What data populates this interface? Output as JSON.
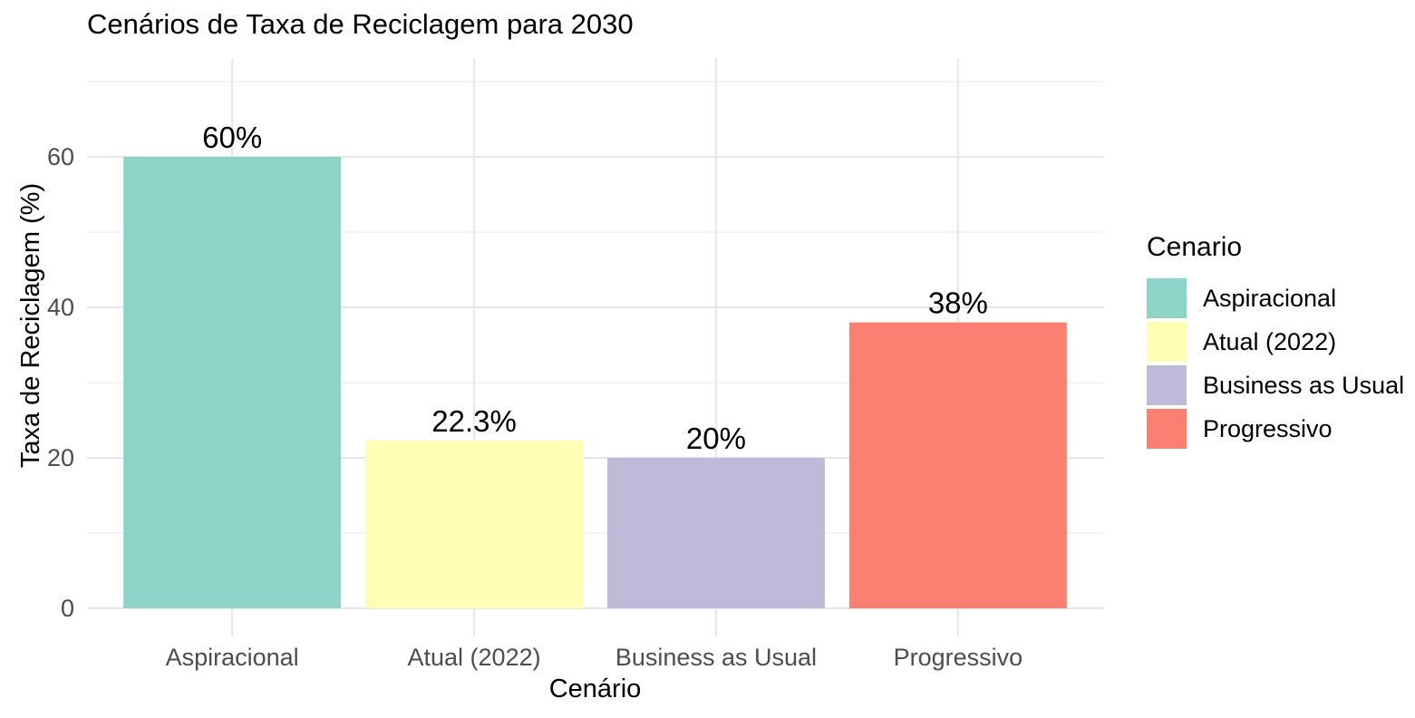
{
  "chart_data": {
    "type": "bar",
    "title": "Cenários de Taxa de Reciclagem para 2030",
    "xlabel": "Cenário",
    "ylabel": "Taxa de Reciclagem (%)",
    "categories": [
      "Aspiracional",
      "Atual (2022)",
      "Business as Usual",
      "Progressivo"
    ],
    "values": [
      60,
      22.3,
      20,
      38
    ],
    "bar_labels": [
      "60%",
      "22.3%",
      "20%",
      "38%"
    ],
    "bar_colors": [
      "#8DD3C7",
      "#FFFFB3",
      "#BEBADA",
      "#FB8072"
    ],
    "ylim": [
      0,
      73
    ],
    "yticks": [
      0,
      20,
      40,
      60
    ],
    "yticks_minor": [
      10,
      30,
      50,
      70
    ],
    "grid": true,
    "legend": {
      "title": "Cenario",
      "position": "right",
      "entries": [
        {
          "label": "Aspiracional",
          "color": "#8DD3C7"
        },
        {
          "label": "Atual (2022)",
          "color": "#FFFFB3"
        },
        {
          "label": "Business as Usual",
          "color": "#BEBADA"
        },
        {
          "label": "Progressivo",
          "color": "#FB8072"
        }
      ]
    },
    "colors": {
      "grid_major": "#E8E8E8",
      "grid_minor": "#F0F0F0",
      "axis_tick_label": "#4D4D4D",
      "text": "#000000",
      "background": "#FFFFFF"
    }
  }
}
